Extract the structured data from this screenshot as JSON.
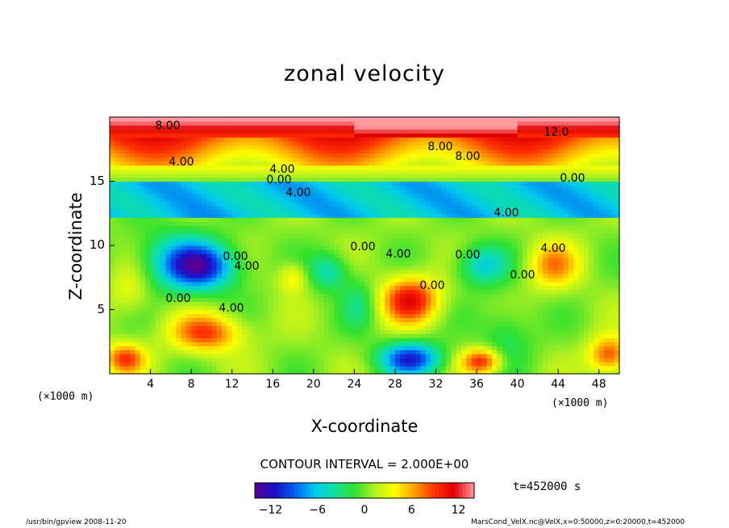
{
  "chart_data": {
    "type": "heatmap",
    "title": "zonal velocity",
    "xlabel": "X-coordinate",
    "ylabel": "Z-coordinate",
    "x_unit_label": "(×1000 m)",
    "xlim": [
      0,
      50
    ],
    "ylim": [
      0,
      20
    ],
    "x_ticks": [
      "4",
      "8",
      "12",
      "16",
      "20",
      "24",
      "28",
      "32",
      "36",
      "40",
      "44",
      "48"
    ],
    "y_ticks": [
      "5",
      "10",
      "15"
    ],
    "contour_labels": [
      "8.00",
      "4.00",
      "0.00",
      "4.00",
      "12.0",
      "8.00",
      "8.00",
      "0.00",
      "4.00",
      "4.00",
      "0.00",
      "0.00",
      "4.00",
      "0.00",
      "0.00",
      "4.00",
      "0.00",
      "4.00",
      "0.00",
      "4.00"
    ],
    "contour_interval_text": "CONTOUR INTERVAL = 2.000E+00",
    "colorbar": {
      "range": [
        -14,
        14
      ],
      "tick_labels": [
        "−12",
        "−6",
        "0",
        "6",
        "12"
      ],
      "tick_values": [
        -12,
        -6,
        0,
        6,
        12
      ]
    },
    "time_text": "t=452000 s",
    "colors": {
      "scale": [
        "#5a0090",
        "#1a10c8",
        "#0060f0",
        "#00c8f0",
        "#10e0a0",
        "#30e030",
        "#b0f020",
        "#ffff00",
        "#ffa000",
        "#ff3000",
        "#e00000",
        "#ff9aa0"
      ]
    }
  },
  "footer": {
    "left": "/usr/bin/gpview   2008-11-20",
    "right": "MarsCond_VelX.nc@VelX,x=0:50000,z=0:20000,t=452000"
  }
}
